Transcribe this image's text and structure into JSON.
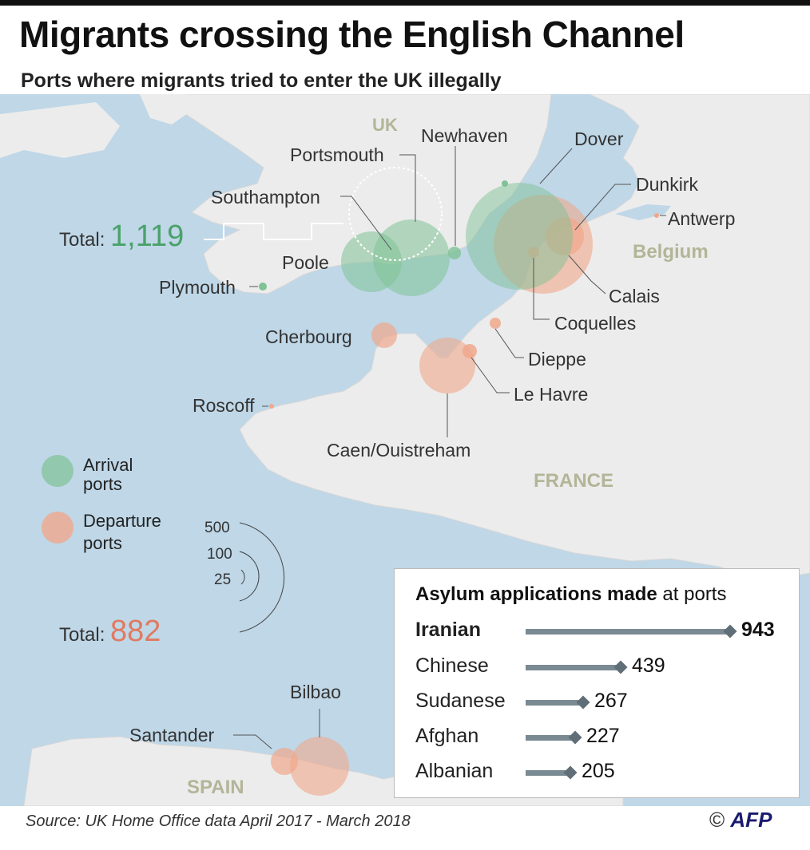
{
  "title": "Migrants crossing the English Channel",
  "subtitle": "Ports where migrants tried to enter the UK illegally",
  "countries": {
    "uk": "UK",
    "belgium": "Belgium",
    "france": "FRANCE",
    "spain": "SPAIN"
  },
  "ports": {
    "portsmouth": "Portsmouth",
    "newhaven": "Newhaven",
    "dover": "Dover",
    "dunkirk": "Dunkirk",
    "antwerp": "Antwerp",
    "southampton": "Southampton",
    "poole": "Poole",
    "plymouth": "Plymouth",
    "calais": "Calais",
    "coquelles": "Coquelles",
    "cherbourg": "Cherbourg",
    "dieppe": "Dieppe",
    "le_havre": "Le Havre",
    "roscoff": "Roscoff",
    "caen": "Caen/Ouistreham",
    "bilbao": "Bilbao",
    "santander": "Santander"
  },
  "totals": {
    "arrival_label": "Total: ",
    "arrival_value": "1,119",
    "departure_label": "Total: ",
    "departure_value": "882"
  },
  "legend": {
    "arrival_line1": "Arrival",
    "arrival_line2": "ports",
    "departure_line1": "Departure",
    "departure_line2": "ports",
    "scale": [
      "500",
      "100",
      "25"
    ]
  },
  "colors": {
    "arrival": "#7fc296",
    "departure": "#f0a88c",
    "arrival_text": "#4aa26a",
    "departure_text": "#e07a60",
    "sea": "#bfd7e7",
    "land": "#ededed",
    "bar": "#7a8a93"
  },
  "asylum": {
    "title_bold": "Asylum applications made",
    "title_rest": " at ports",
    "rows": [
      {
        "label": "Iranian",
        "value": "943",
        "n": 943
      },
      {
        "label": "Chinese",
        "value": "439",
        "n": 439
      },
      {
        "label": "Sudanese",
        "value": "267",
        "n": 267
      },
      {
        "label": "Afghan",
        "value": "227",
        "n": 227
      },
      {
        "label": "Albanian",
        "value": "205",
        "n": 205
      }
    ]
  },
  "source": "Source: UK Home Office data April 2017 - March 2018",
  "credit": {
    "symbol": "©",
    "agency": "AFP"
  }
}
